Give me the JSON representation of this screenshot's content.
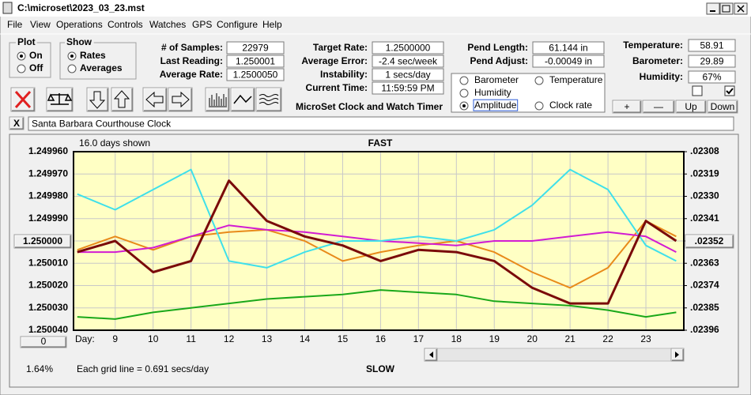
{
  "window": {
    "title": "C:\\microset\\2023_03_23.mst"
  },
  "menu": [
    "File",
    "View",
    "Operations",
    "Controls",
    "Watches",
    "GPS",
    "Configure",
    "Help"
  ],
  "plot": {
    "label": "Plot",
    "options": [
      "On",
      "Off"
    ],
    "selected": 0
  },
  "show": {
    "label": "Show",
    "options": [
      "Rates",
      "Averages"
    ],
    "selected": 0
  },
  "stats": [
    {
      "label": "# of Samples:",
      "value": "22979"
    },
    {
      "label": "Last Reading:",
      "value": "1.250001"
    },
    {
      "label": "Average Rate:",
      "value": "1.2500050"
    }
  ],
  "timing": [
    {
      "label": "Target Rate:",
      "value": "1.2500000"
    },
    {
      "label": "Average Error:",
      "value": "-2.4 sec/week"
    },
    {
      "label": "Instability:",
      "value": "1 secs/day"
    },
    {
      "label": "Current Time:",
      "value": "11:59:59 PM"
    }
  ],
  "app_name": "MicroSet Clock and Watch Timer",
  "pendulum": [
    {
      "label": "Pend Length:",
      "value": "61.144 in"
    },
    {
      "label": "Pend Adjust:",
      "value": "-0.00049 in"
    }
  ],
  "environment": [
    {
      "label": "Temperature:",
      "value": "58.91"
    },
    {
      "label": "Barometer:",
      "value": "29.89"
    },
    {
      "label": "Humidity:",
      "value": "67%"
    }
  ],
  "env_buttons": [
    "+",
    "—",
    "Up",
    "Down"
  ],
  "checkboxes": [
    false,
    true
  ],
  "clear_button": "X",
  "clock_name": "Santa Barbara Courthouse Clock",
  "zero_button": "0",
  "percent": "1.64%",
  "chart_data": {
    "type": "line",
    "days_shown": "16.0 days shown",
    "top_label": "FAST",
    "bottom_label": "SLOW",
    "x_label": "Day:",
    "grid_note": "Each grid line = 0.691 secs/day",
    "x": [
      8,
      9,
      10,
      11,
      12,
      13,
      14,
      15,
      16,
      17,
      18,
      19,
      20,
      21,
      22,
      23,
      23.8
    ],
    "series": [
      {
        "name": "Barometer",
        "color": "#e88a1a",
        "values": [
          1.250004,
          1.249998,
          1.250004,
          1.249998,
          1.249996,
          1.249995,
          1.25,
          1.250009,
          1.250005,
          1.250002,
          1.25,
          1.250005,
          1.250014,
          1.250021,
          1.250012,
          1.249991,
          1.249998
        ]
      },
      {
        "name": "Temperature",
        "color": "#1aa81a",
        "values": [
          1.250034,
          1.250035,
          1.250032,
          1.25003,
          1.250028,
          1.250026,
          1.250025,
          1.250024,
          1.250022,
          1.250023,
          1.250024,
          1.250027,
          1.250028,
          1.250029,
          1.250031,
          1.250034,
          1.250032
        ]
      },
      {
        "name": "Humidity",
        "color": "#d21cd2",
        "values": [
          1.250005,
          1.250005,
          1.250003,
          1.249998,
          1.249993,
          1.249995,
          1.249996,
          1.249998,
          1.25,
          1.250001,
          1.250002,
          1.25,
          1.25,
          1.249998,
          1.249996,
          1.249998,
          1.250005
        ]
      },
      {
        "name": "Amplitude",
        "color": "#3fe0ea",
        "values": [
          1.249979,
          1.249986,
          1.249977,
          1.249968,
          1.250009,
          1.250012,
          1.250005,
          1.25,
          1.25,
          1.249998,
          1.25,
          1.249995,
          1.249984,
          1.249968,
          1.249977,
          1.250002,
          1.250009
        ]
      },
      {
        "name": "Clock rate",
        "color": "#7a0a0a",
        "values": [
          1.250005,
          1.25,
          1.250014,
          1.250009,
          1.249973,
          1.249991,
          1.249998,
          1.250002,
          1.250009,
          1.250004,
          1.250005,
          1.250009,
          1.250021,
          1.250028,
          1.250028,
          1.249991,
          1.25
        ]
      }
    ],
    "legend_selected": 3,
    "xlim": [
      7.9,
      24.0
    ],
    "xticks": [
      9,
      10,
      11,
      12,
      13,
      14,
      15,
      16,
      17,
      18,
      19,
      20,
      21,
      22,
      23
    ],
    "ylim": [
      1.24996,
      1.25004
    ],
    "y_reversed": true,
    "yticks": [
      {
        "value": 1.24996,
        "label": "1.249960"
      },
      {
        "value": 1.24997,
        "label": "1.249970"
      },
      {
        "value": 1.24998,
        "label": "1.249980"
      },
      {
        "value": 1.24999,
        "label": "1.249990"
      },
      {
        "value": 1.25,
        "label": "1.250000"
      },
      {
        "value": 1.25001,
        "label": "1.250010"
      },
      {
        "value": 1.25002,
        "label": "1.250020"
      },
      {
        "value": 1.25003,
        "label": "1.250030"
      },
      {
        "value": 1.25004,
        "label": "1.250040"
      }
    ],
    "y2lim": [
      0.02308,
      0.02396
    ],
    "y2ticks": [
      {
        "value": 0.02308,
        "label": ".02308"
      },
      {
        "value": 0.02319,
        "label": ".02319"
      },
      {
        "value": 0.0233,
        "label": ".02330"
      },
      {
        "value": 0.02341,
        "label": ".02341"
      },
      {
        "value": 0.02352,
        "label": ".02352"
      },
      {
        "value": 0.02363,
        "label": ".02363"
      },
      {
        "value": 0.02374,
        "label": ".02374"
      },
      {
        "value": 0.02385,
        "label": ".02385"
      },
      {
        "value": 0.02396,
        "label": ".02396"
      }
    ],
    "grid": true
  }
}
